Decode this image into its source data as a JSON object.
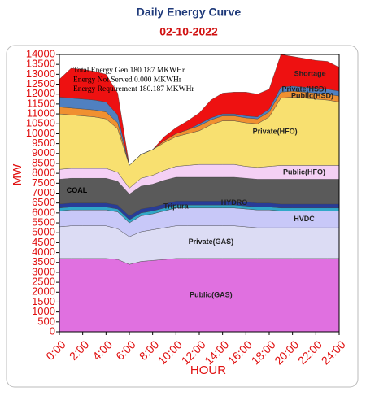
{
  "chart_data": {
    "type": "stacked-area",
    "title": "Daily Energy Curve",
    "subtitle": "02-10-2022",
    "x_label": "HOUR",
    "y_label": "MW",
    "annotations": [
      "Total Energy Gen 180.187 MKWHr",
      "Energy Not Served  0.000 MKWHr",
      "Energy Requirement     180.187 MKWHr"
    ],
    "x": [
      0,
      1,
      2,
      3,
      4,
      5,
      6,
      7,
      8,
      9,
      10,
      11,
      12,
      13,
      14,
      15,
      16,
      17,
      18,
      19,
      20,
      21,
      22,
      23,
      24
    ],
    "xlim": [
      0,
      24
    ],
    "xticks": [
      {
        "value": 0,
        "label": "0:00"
      },
      {
        "value": 2,
        "label": "2:00"
      },
      {
        "value": 4,
        "label": "4:00"
      },
      {
        "value": 6,
        "label": "6:00"
      },
      {
        "value": 8,
        "label": "8:00"
      },
      {
        "value": 10,
        "label": "10:00"
      },
      {
        "value": 12,
        "label": "12:00"
      },
      {
        "value": 14,
        "label": "14:00"
      },
      {
        "value": 16,
        "label": "16:00"
      },
      {
        "value": 18,
        "label": "18:00"
      },
      {
        "value": 20,
        "label": "20:00"
      },
      {
        "value": 22,
        "label": "22:00"
      },
      {
        "value": 24,
        "label": "24:00"
      }
    ],
    "ylim": [
      0,
      14000
    ],
    "yticks": [
      0,
      500,
      1000,
      1500,
      2000,
      2500,
      3000,
      3500,
      4000,
      4500,
      5000,
      5500,
      6000,
      6500,
      7000,
      7500,
      8000,
      8500,
      9000,
      9500,
      10000,
      10500,
      11000,
      11500,
      12000,
      12500,
      13000,
      13500,
      14000
    ],
    "series": [
      {
        "name": "Public(GAS)",
        "color": "#e070e0",
        "values": [
          3700,
          3700,
          3700,
          3700,
          3700,
          3650,
          3400,
          3550,
          3600,
          3650,
          3700,
          3700,
          3700,
          3700,
          3700,
          3700,
          3700,
          3700,
          3700,
          3700,
          3700,
          3700,
          3700,
          3700,
          3700
        ]
      },
      {
        "name": "Private(GAS)",
        "color": "#dcdcf4",
        "values": [
          1600,
          1650,
          1650,
          1650,
          1650,
          1550,
          1400,
          1500,
          1550,
          1600,
          1650,
          1650,
          1650,
          1650,
          1650,
          1650,
          1600,
          1550,
          1550,
          1550,
          1550,
          1550,
          1550,
          1550,
          1550
        ]
      },
      {
        "name": "HVDC",
        "color": "#c8c8f8",
        "values": [
          800,
          800,
          800,
          800,
          800,
          850,
          700,
          800,
          800,
          850,
          900,
          900,
          900,
          900,
          900,
          900,
          900,
          900,
          900,
          850,
          850,
          850,
          850,
          850,
          850
        ]
      },
      {
        "name": "Tripura",
        "color": "#30a8c8",
        "values": [
          150,
          150,
          150,
          150,
          150,
          150,
          150,
          150,
          150,
          150,
          150,
          150,
          150,
          150,
          150,
          150,
          150,
          150,
          150,
          150,
          150,
          150,
          150,
          150,
          150
        ]
      },
      {
        "name": "HYDRO",
        "color": "#283c98",
        "values": [
          200,
          200,
          200,
          200,
          200,
          200,
          200,
          200,
          200,
          200,
          200,
          200,
          200,
          200,
          200,
          200,
          200,
          200,
          200,
          200,
          200,
          200,
          200,
          200,
          200
        ]
      },
      {
        "name": "COAL",
        "color": "#5a5a5a",
        "values": [
          1250,
          1250,
          1250,
          1250,
          1250,
          1200,
          1100,
          1150,
          1150,
          1200,
          1200,
          1200,
          1200,
          1200,
          1200,
          1200,
          1200,
          1200,
          1200,
          1250,
          1250,
          1250,
          1250,
          1250,
          1250
        ]
      },
      {
        "name": "Public(HFO)",
        "color": "#f4d0f4",
        "values": [
          500,
          500,
          500,
          500,
          500,
          450,
          300,
          400,
          450,
          500,
          550,
          600,
          650,
          650,
          650,
          650,
          600,
          600,
          650,
          700,
          700,
          700,
          700,
          700,
          700
        ]
      },
      {
        "name": "Private(HFO)",
        "color": "#f8e070",
        "values": [
          2800,
          2700,
          2650,
          2600,
          2500,
          2200,
          1150,
          1200,
          1300,
          1400,
          1500,
          1600,
          1700,
          2000,
          2200,
          2200,
          2200,
          2200,
          2500,
          3400,
          3450,
          3400,
          3350,
          3300,
          3200
        ]
      },
      {
        "name": "Public(HSD)",
        "color": "#f09030",
        "values": [
          350,
          350,
          350,
          350,
          350,
          300,
          0,
          0,
          0,
          100,
          150,
          200,
          250,
          250,
          250,
          250,
          250,
          250,
          250,
          300,
          300,
          300,
          300,
          300,
          300
        ]
      },
      {
        "name": "Private(HSD)",
        "color": "#5080c0",
        "values": [
          500,
          500,
          500,
          500,
          500,
          400,
          0,
          0,
          0,
          0,
          0,
          0,
          100,
          100,
          100,
          100,
          100,
          100,
          150,
          250,
          250,
          250,
          250,
          250,
          250
        ]
      },
      {
        "name": "Shortage",
        "color": "#ee1111",
        "values": [
          900,
          1500,
          1500,
          1450,
          1400,
          1100,
          0,
          0,
          0,
          200,
          300,
          450,
          550,
          900,
          1050,
          1100,
          1200,
          1150,
          1000,
          1650,
          1500,
          1450,
          1400,
          1400,
          1200
        ]
      }
    ]
  }
}
